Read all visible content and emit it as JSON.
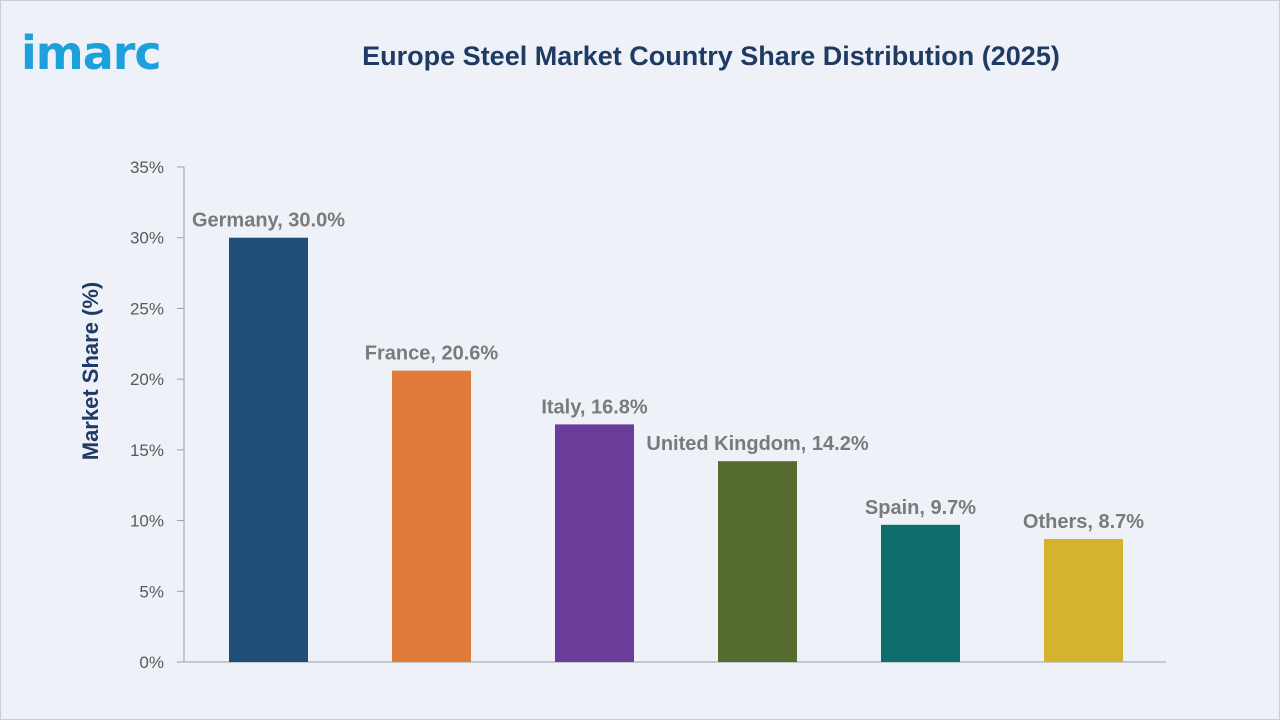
{
  "brand": {
    "logo_text": "imarc",
    "color": "#1ea0dc"
  },
  "chart_data": {
    "type": "bar",
    "title": "Europe Steel Market Country Share Distribution (2025)",
    "xlabel": "",
    "ylabel": "Market Share (%)",
    "ylim": [
      0,
      35
    ],
    "yticks": [
      0,
      5,
      10,
      15,
      20,
      25,
      30,
      35
    ],
    "ytick_labels": [
      "0%",
      "5%",
      "10%",
      "15%",
      "20%",
      "25%",
      "30%",
      "35%"
    ],
    "categories": [
      "Germany",
      "France",
      "Italy",
      "United Kingdom",
      "Spain",
      "Others"
    ],
    "values": [
      30.0,
      20.6,
      16.8,
      14.2,
      9.7,
      8.7
    ],
    "data_labels": [
      "Germany, 30.0%",
      "France, 20.6%",
      "Italy, 16.8%",
      "United Kingdom, 14.2%",
      "Spain, 9.7%",
      "Others, 8.7%"
    ],
    "colors": [
      "#1f4e79",
      "#e07b39",
      "#6a3d9a",
      "#556b2f",
      "#0e6e6e",
      "#d6b32e"
    ],
    "grid": false,
    "legend": "none"
  }
}
